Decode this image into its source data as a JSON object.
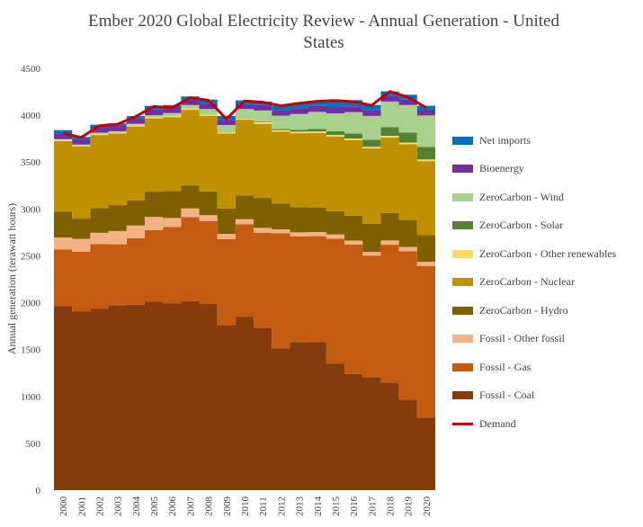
{
  "chart_data": {
    "type": "area",
    "stacked": true,
    "title": "Ember 2020 Global Electricity Review - Annual Generation - United States",
    "title_lines": [
      "Ember 2020 Global Electricity Review - Annual Generation - United",
      "States"
    ],
    "xlabel": "",
    "ylabel": "Annual generation (terawatt hours)",
    "ylim": [
      0,
      4500
    ],
    "yticks": [
      0,
      500,
      1000,
      1500,
      2000,
      2500,
      3000,
      3500,
      4000,
      4500
    ],
    "categories": [
      "2000",
      "2001",
      "2002",
      "2003",
      "2004",
      "2005",
      "2006",
      "2007",
      "2008",
      "2009",
      "2010",
      "2011",
      "2012",
      "2013",
      "2014",
      "2015",
      "2016",
      "2017",
      "2018",
      "2019",
      "2020"
    ],
    "legend_position": "right",
    "series": [
      {
        "name": "Fossil - Coal",
        "color": "#843C0C",
        "values": [
          1966,
          1904,
          1933,
          1974,
          1978,
          2013,
          1991,
          2016,
          1986,
          1756,
          1847,
          1733,
          1514,
          1581,
          1582,
          1352,
          1240,
          1206,
          1149,
          966,
          774
        ]
      },
      {
        "name": "Fossil - Gas",
        "color": "#C55A11",
        "values": [
          601,
          639,
          691,
          649,
          710,
          761,
          816,
          897,
          883,
          921,
          988,
          1013,
          1226,
          1125,
          1127,
          1331,
          1379,
          1296,
          1469,
          1582,
          1617
        ]
      },
      {
        "name": "Fossil - Other fossil",
        "color": "#F4B183",
        "values": [
          128,
          137,
          121,
          141,
          135,
          140,
          97,
          92,
          65,
          56,
          55,
          52,
          41,
          44,
          45,
          44,
          43,
          40,
          46,
          46,
          45
        ]
      },
      {
        "name": "ZeroCarbon - Hydro",
        "color": "#7F6000",
        "values": [
          275,
          217,
          264,
          276,
          268,
          270,
          289,
          247,
          254,
          273,
          255,
          319,
          276,
          269,
          259,
          249,
          267,
          300,
          292,
          288,
          285
        ]
      },
      {
        "name": "ZeroCarbon - Nuclear",
        "color": "#BF9000",
        "values": [
          754,
          769,
          780,
          764,
          789,
          782,
          787,
          806,
          806,
          799,
          807,
          790,
          769,
          789,
          797,
          797,
          806,
          805,
          807,
          809,
          790
        ]
      },
      {
        "name": "ZeroCarbon - Other renewables",
        "color": "#FFD966",
        "values": [
          14,
          13,
          14,
          14,
          14,
          15,
          15,
          15,
          15,
          15,
          15,
          17,
          16,
          17,
          17,
          16,
          17,
          16,
          17,
          17,
          17
        ]
      },
      {
        "name": "ZeroCarbon - Solar",
        "color": "#548235",
        "values": [
          1,
          1,
          1,
          1,
          1,
          1,
          1,
          1,
          2,
          2,
          4,
          6,
          12,
          20,
          28,
          39,
          54,
          76,
          93,
          106,
          132
        ]
      },
      {
        "name": "ZeroCarbon - Wind",
        "color": "#A9D18E",
        "values": [
          6,
          7,
          10,
          11,
          14,
          18,
          27,
          35,
          55,
          74,
          95,
          120,
          141,
          168,
          181,
          191,
          227,
          254,
          273,
          295,
          338
        ]
      },
      {
        "name": "Bioenergy",
        "color": "#7030A0",
        "values": [
          61,
          56,
          57,
          60,
          60,
          61,
          60,
          59,
          59,
          56,
          59,
          58,
          58,
          61,
          64,
          64,
          63,
          63,
          63,
          58,
          56
        ]
      },
      {
        "name": "Net imports",
        "color": "#0070C0",
        "values": [
          34,
          25,
          27,
          22,
          21,
          38,
          26,
          32,
          41,
          40,
          33,
          37,
          48,
          53,
          51,
          68,
          64,
          54,
          45,
          51,
          47
        ]
      }
    ],
    "demand": {
      "name": "Demand",
      "color": "#C00000",
      "values": [
        3809,
        3762,
        3888,
        3904,
        3985,
        4094,
        4079,
        4187,
        4160,
        3960,
        4152,
        4139,
        4101,
        4127,
        4149,
        4157,
        4144,
        4106,
        4254,
        4193,
        4081
      ]
    },
    "legend_order": [
      "Net imports",
      "Bioenergy",
      "ZeroCarbon - Wind",
      "ZeroCarbon - Solar",
      "ZeroCarbon - Other renewables",
      "ZeroCarbon - Nuclear",
      "ZeroCarbon - Hydro",
      "Fossil - Other fossil",
      "Fossil - Gas",
      "Fossil - Coal",
      "Demand"
    ]
  }
}
